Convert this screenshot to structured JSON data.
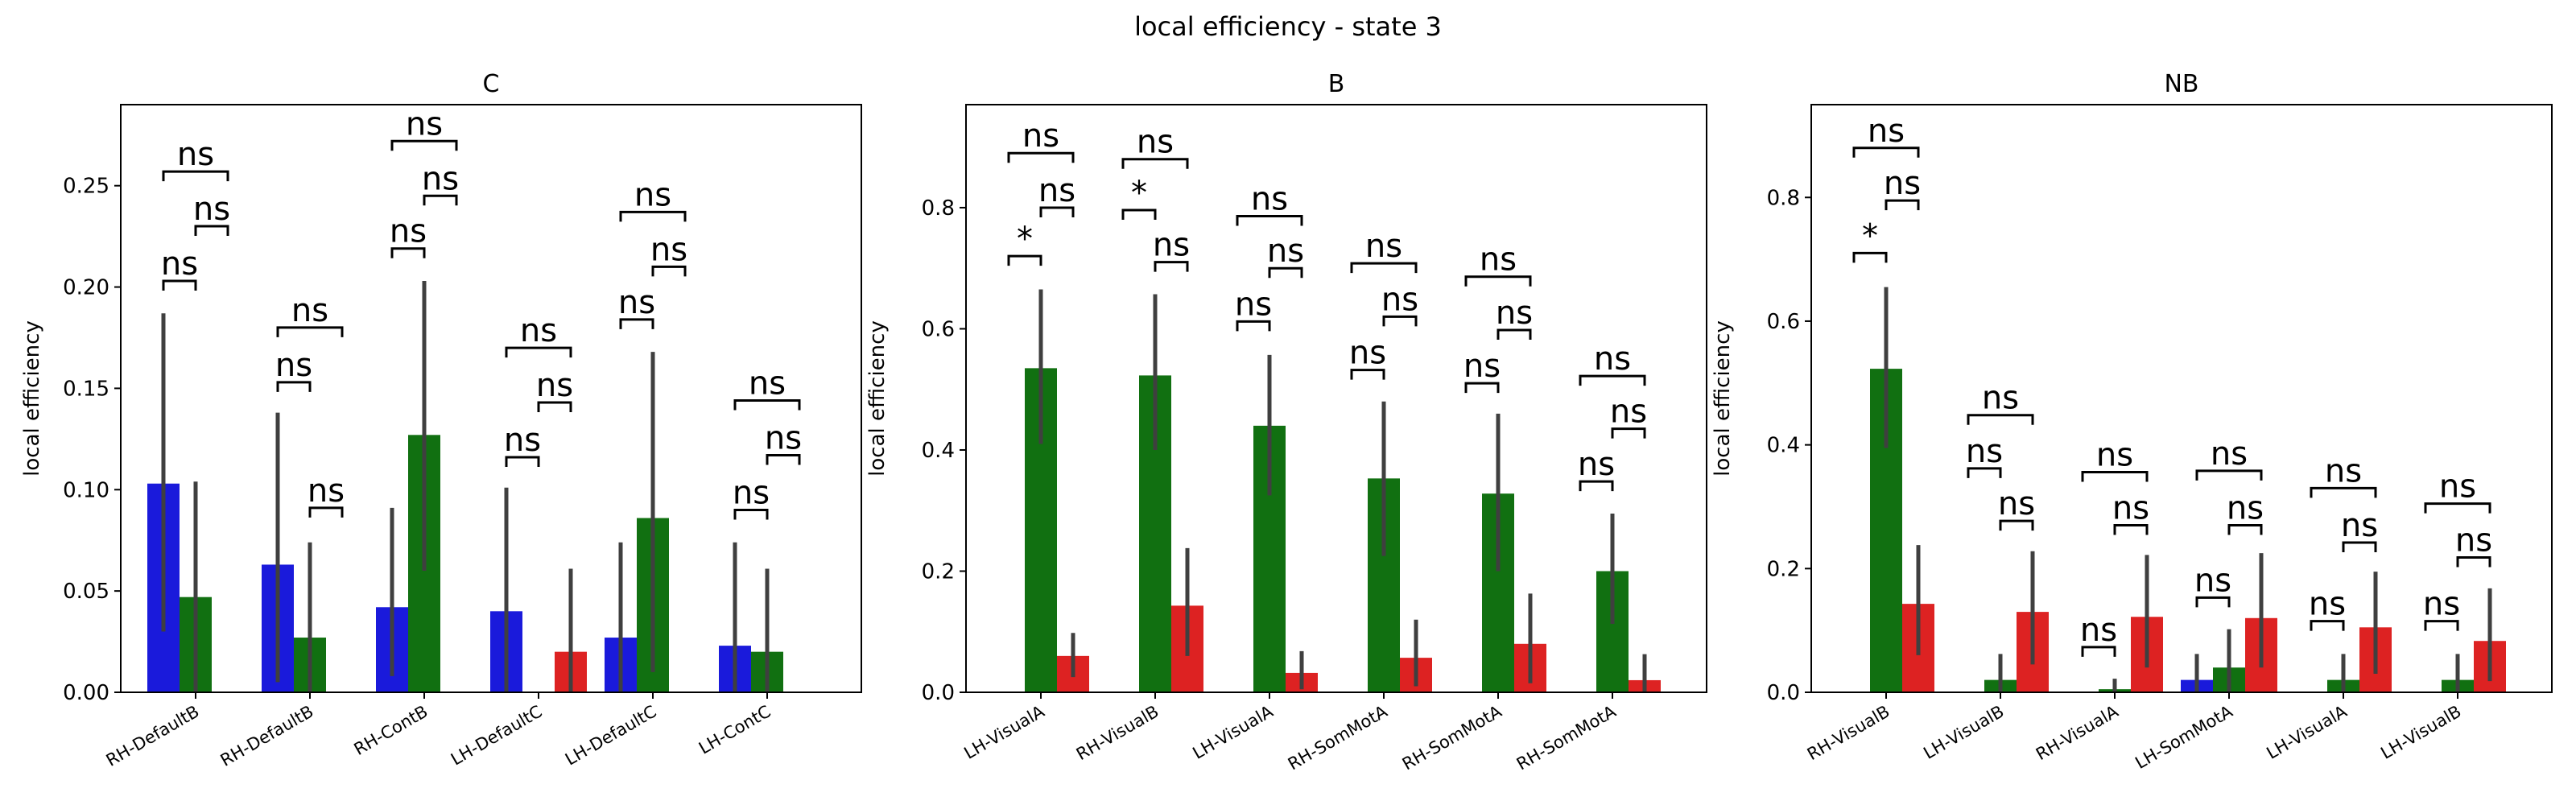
{
  "figure": {
    "title": "local efficiency - state 3"
  },
  "colors": {
    "group1": "#1a1adb",
    "group2": "#117011",
    "group3": "#dd2222",
    "errorbar": "#3f3f3f"
  },
  "chart_data": [
    {
      "type": "bar",
      "title": "C",
      "ylabel": "local efficiency",
      "ylim": [
        0,
        0.29
      ],
      "yticks": [
        0.0,
        0.05,
        0.1,
        0.15,
        0.2,
        0.25
      ],
      "ytick_labels": [
        "0.00",
        "0.05",
        "0.10",
        "0.15",
        "0.20",
        "0.25"
      ],
      "categories": [
        "RH-DefaultB",
        "RH-DefaultB",
        "RH-ContB",
        "LH-DefaultC",
        "LH-DefaultC",
        "LH-ContC"
      ],
      "series": [
        {
          "values": [
            0.103,
            0.063,
            0.042,
            0.04,
            0.027,
            0.023
          ],
          "ci_low": [
            0.03,
            0.005,
            0.008,
            0.0,
            0.0,
            0.0
          ],
          "ci_high": [
            0.187,
            0.138,
            0.091,
            0.101,
            0.074,
            0.074
          ]
        },
        {
          "values": [
            0.047,
            0.027,
            0.127,
            0.0,
            0.086,
            0.02
          ],
          "ci_low": [
            0.0,
            0.0,
            0.06,
            0.0,
            0.01,
            0.0
          ],
          "ci_high": [
            0.104,
            0.074,
            0.203,
            0.0,
            0.168,
            0.061
          ]
        },
        {
          "values": [
            0.0,
            0.0,
            0.0,
            0.02,
            0.0,
            0.0
          ],
          "ci_low": [
            0.0,
            0.0,
            0.0,
            0.0,
            0.0,
            0.0
          ],
          "ci_high": [
            0.0,
            0.0,
            0.0,
            0.061,
            0.0,
            0.0
          ]
        }
      ],
      "annotations": [
        {
          "pair": [
            0,
            1
          ],
          "y": 0.203,
          "label": "ns"
        },
        {
          "pair": [
            1,
            2
          ],
          "y": 0.23,
          "label": "ns"
        },
        {
          "pair": [
            0,
            2
          ],
          "y": 0.257,
          "label": "ns"
        },
        {
          "pair": [
            0,
            1
          ],
          "y": 0.153,
          "label": "ns"
        },
        {
          "pair": [
            1,
            2
          ],
          "y": 0.091,
          "label": "ns"
        },
        {
          "pair": [
            0,
            2
          ],
          "y": 0.18,
          "label": "ns"
        },
        {
          "pair": [
            0,
            1
          ],
          "y": 0.219,
          "label": "ns"
        },
        {
          "pair": [
            1,
            2
          ],
          "y": 0.245,
          "label": "ns"
        },
        {
          "pair": [
            0,
            2
          ],
          "y": 0.272,
          "label": "ns"
        },
        {
          "pair": [
            0,
            1
          ],
          "y": 0.116,
          "label": "ns"
        },
        {
          "pair": [
            1,
            2
          ],
          "y": 0.143,
          "label": "ns"
        },
        {
          "pair": [
            0,
            2
          ],
          "y": 0.17,
          "label": "ns"
        },
        {
          "pair": [
            0,
            1
          ],
          "y": 0.184,
          "label": "ns"
        },
        {
          "pair": [
            1,
            2
          ],
          "y": 0.21,
          "label": "ns"
        },
        {
          "pair": [
            0,
            2
          ],
          "y": 0.237,
          "label": "ns"
        },
        {
          "pair": [
            0,
            1
          ],
          "y": 0.09,
          "label": "ns"
        },
        {
          "pair": [
            1,
            2
          ],
          "y": 0.117,
          "label": "ns"
        },
        {
          "pair": [
            0,
            2
          ],
          "y": 0.144,
          "label": "ns"
        }
      ]
    },
    {
      "type": "bar",
      "title": "B",
      "ylabel": "local efficiency",
      "ylim": [
        0,
        0.97
      ],
      "yticks": [
        0.0,
        0.2,
        0.4,
        0.6,
        0.8
      ],
      "ytick_labels": [
        "0.0",
        "0.2",
        "0.4",
        "0.6",
        "0.8"
      ],
      "categories": [
        "LH-VisualA",
        "RH-VisualB",
        "LH-VisualA",
        "RH-SomMotA",
        "RH-SomMotA",
        "RH-SomMotA"
      ],
      "series": [
        {
          "values": [
            0.0,
            0.0,
            0.0,
            0.0,
            0.0,
            0.0
          ],
          "ci_low": [
            0,
            0,
            0,
            0,
            0,
            0
          ],
          "ci_high": [
            0,
            0,
            0,
            0,
            0,
            0
          ]
        },
        {
          "values": [
            0.535,
            0.523,
            0.44,
            0.353,
            0.328,
            0.2
          ],
          "ci_low": [
            0.41,
            0.4,
            0.325,
            0.225,
            0.2,
            0.113
          ],
          "ci_high": [
            0.665,
            0.657,
            0.557,
            0.48,
            0.46,
            0.295
          ]
        },
        {
          "values": [
            0.06,
            0.143,
            0.032,
            0.057,
            0.08,
            0.02
          ],
          "ci_low": [
            0.025,
            0.06,
            0.005,
            0.01,
            0.015,
            0.0
          ],
          "ci_high": [
            0.098,
            0.238,
            0.068,
            0.12,
            0.163,
            0.063
          ]
        }
      ],
      "annotations": [
        {
          "pair": [
            0,
            1
          ],
          "y": 0.72,
          "label": "*"
        },
        {
          "pair": [
            1,
            2
          ],
          "y": 0.8,
          "label": "ns"
        },
        {
          "pair": [
            0,
            2
          ],
          "y": 0.89,
          "label": "ns"
        },
        {
          "pair": [
            0,
            1
          ],
          "y": 0.796,
          "label": "*"
        },
        {
          "pair": [
            1,
            2
          ],
          "y": 0.71,
          "label": "ns"
        },
        {
          "pair": [
            0,
            2
          ],
          "y": 0.88,
          "label": "ns"
        },
        {
          "pair": [
            0,
            1
          ],
          "y": 0.612,
          "label": "ns"
        },
        {
          "pair": [
            1,
            2
          ],
          "y": 0.7,
          "label": "ns"
        },
        {
          "pair": [
            0,
            2
          ],
          "y": 0.786,
          "label": "ns"
        },
        {
          "pair": [
            0,
            1
          ],
          "y": 0.532,
          "label": "ns"
        },
        {
          "pair": [
            1,
            2
          ],
          "y": 0.62,
          "label": "ns"
        },
        {
          "pair": [
            0,
            2
          ],
          "y": 0.708,
          "label": "ns"
        },
        {
          "pair": [
            0,
            1
          ],
          "y": 0.51,
          "label": "ns"
        },
        {
          "pair": [
            1,
            2
          ],
          "y": 0.598,
          "label": "ns"
        },
        {
          "pair": [
            0,
            2
          ],
          "y": 0.686,
          "label": "ns"
        },
        {
          "pair": [
            0,
            1
          ],
          "y": 0.348,
          "label": "ns"
        },
        {
          "pair": [
            1,
            2
          ],
          "y": 0.435,
          "label": "ns"
        },
        {
          "pair": [
            0,
            2
          ],
          "y": 0.522,
          "label": "ns"
        }
      ]
    },
    {
      "type": "bar",
      "title": "NB",
      "ylabel": "local efficiency",
      "ylim": [
        0,
        0.95
      ],
      "yticks": [
        0.0,
        0.2,
        0.4,
        0.6,
        0.8
      ],
      "ytick_labels": [
        "0.0",
        "0.2",
        "0.4",
        "0.6",
        "0.8"
      ],
      "categories": [
        "RH-VisualB",
        "LH-VisualB",
        "RH-VisualA",
        "LH-SomMotA",
        "LH-VisualA",
        "LH-VisualB"
      ],
      "series": [
        {
          "values": [
            0.0,
            0.0,
            0.0,
            0.02,
            0.0,
            0.0
          ],
          "ci_low": [
            0,
            0,
            0,
            0.0,
            0,
            0
          ],
          "ci_high": [
            0,
            0,
            0,
            0.062,
            0,
            0
          ]
        },
        {
          "values": [
            0.523,
            0.02,
            0.005,
            0.04,
            0.02,
            0.02
          ],
          "ci_low": [
            0.395,
            0.0,
            0.0,
            0.0,
            0.0,
            0.0
          ],
          "ci_high": [
            0.655,
            0.062,
            0.022,
            0.102,
            0.062,
            0.062
          ]
        },
        {
          "values": [
            0.143,
            0.13,
            0.122,
            0.12,
            0.105,
            0.083
          ],
          "ci_low": [
            0.06,
            0.045,
            0.04,
            0.04,
            0.03,
            0.018
          ],
          "ci_high": [
            0.238,
            0.228,
            0.222,
            0.225,
            0.195,
            0.168
          ]
        }
      ],
      "annotations": [
        {
          "pair": [
            0,
            1
          ],
          "y": 0.71,
          "label": "*"
        },
        {
          "pair": [
            1,
            2
          ],
          "y": 0.795,
          "label": "ns"
        },
        {
          "pair": [
            0,
            2
          ],
          "y": 0.88,
          "label": "ns"
        },
        {
          "pair": [
            0,
            1
          ],
          "y": 0.362,
          "label": "ns"
        },
        {
          "pair": [
            1,
            2
          ],
          "y": 0.277,
          "label": "ns"
        },
        {
          "pair": [
            0,
            2
          ],
          "y": 0.448,
          "label": "ns"
        },
        {
          "pair": [
            0,
            1
          ],
          "y": 0.073,
          "label": "ns"
        },
        {
          "pair": [
            1,
            2
          ],
          "y": 0.27,
          "label": "ns"
        },
        {
          "pair": [
            0,
            2
          ],
          "y": 0.356,
          "label": "ns"
        },
        {
          "pair": [
            0,
            1
          ],
          "y": 0.153,
          "label": "ns"
        },
        {
          "pair": [
            1,
            2
          ],
          "y": 0.27,
          "label": "ns"
        },
        {
          "pair": [
            0,
            2
          ],
          "y": 0.358,
          "label": "ns"
        },
        {
          "pair": [
            0,
            1
          ],
          "y": 0.115,
          "label": "ns"
        },
        {
          "pair": [
            1,
            2
          ],
          "y": 0.242,
          "label": "ns"
        },
        {
          "pair": [
            0,
            2
          ],
          "y": 0.33,
          "label": "ns"
        },
        {
          "pair": [
            0,
            1
          ],
          "y": 0.115,
          "label": "ns"
        },
        {
          "pair": [
            1,
            2
          ],
          "y": 0.218,
          "label": "ns"
        },
        {
          "pair": [
            0,
            2
          ],
          "y": 0.305,
          "label": "ns"
        }
      ]
    }
  ]
}
